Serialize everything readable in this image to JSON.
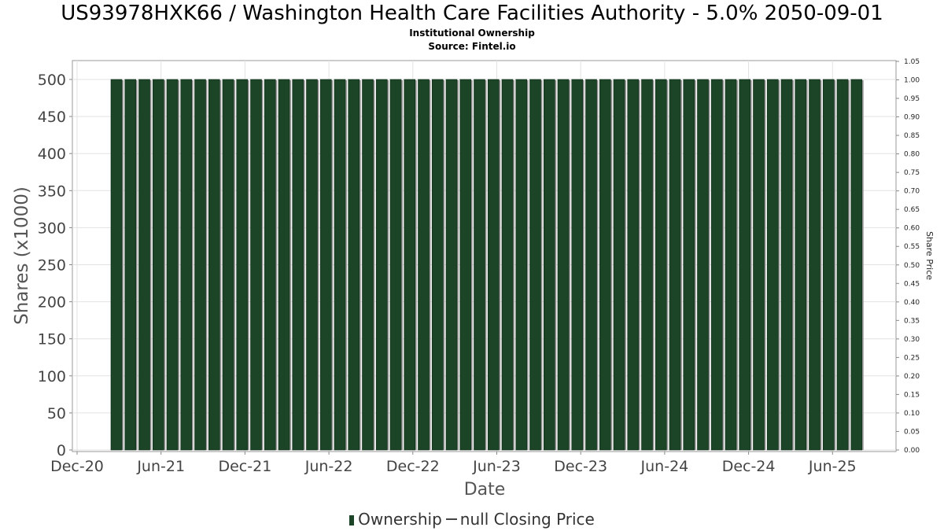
{
  "chart_data": {
    "type": "bar",
    "title": "US93978HXK66 / Washington Health Care Facilities Authority - 5.0% 2050-09-01",
    "subtitle": "Institutional Ownership",
    "source": "Source: Fintel.io",
    "xlabel": "Date",
    "ylabel": "Shares (x1000)",
    "y2label": "Share Price",
    "ylim": [
      0,
      520
    ],
    "y2lim": [
      0,
      1.05
    ],
    "yticks": [
      "0",
      "50",
      "100",
      "150",
      "200",
      "250",
      "300",
      "350",
      "400",
      "450",
      "500"
    ],
    "y2ticks": [
      "0.00",
      "0.05",
      "0.10",
      "0.15",
      "0.20",
      "0.25",
      "0.30",
      "0.35",
      "0.40",
      "0.45",
      "0.50",
      "0.55",
      "0.60",
      "0.65",
      "0.70",
      "0.75",
      "0.80",
      "0.85",
      "0.90",
      "0.95",
      "1.00",
      "1.05"
    ],
    "xticks": [
      "Dec-20",
      "Jun-21",
      "Dec-21",
      "Jun-22",
      "Dec-22",
      "Jun-23",
      "Dec-23",
      "Jun-24",
      "Dec-24",
      "Jun-25"
    ],
    "series": [
      {
        "name": "Ownership",
        "color": "#1b4526",
        "values": [
          500,
          500,
          500,
          500,
          500,
          500,
          500,
          500,
          500,
          500,
          500,
          500,
          500,
          500,
          500,
          500,
          500,
          500,
          500,
          500,
          500,
          500,
          500,
          500,
          500,
          500,
          500,
          500,
          500,
          500,
          500,
          500,
          500,
          500,
          500,
          500,
          500,
          500,
          500,
          500,
          500,
          500,
          500,
          500,
          500,
          500,
          500,
          500,
          500,
          500,
          500,
          500,
          500,
          500
        ]
      }
    ],
    "legend": {
      "position": "bottom",
      "entries": [
        "Ownership",
        "null Closing Price"
      ]
    }
  }
}
